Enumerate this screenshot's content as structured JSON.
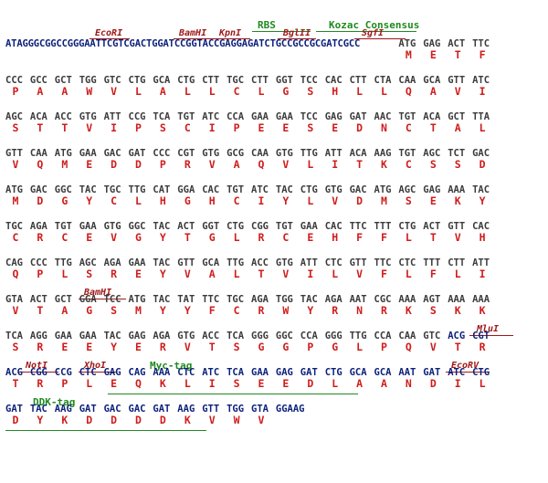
{
  "sequence_prefix": "ATAGGGCGGCCGGGAATTCGTCGACTGGATCCGGTACCGAGGAGATCTGCCGCCGCGATCGCC",
  "features_top": {
    "rbs": "RBS",
    "kozac": "Kozac Consensus",
    "ecori": "EcoRI",
    "bamhi": "BamHI",
    "kpni": "KpnI",
    "bglii": "BglII",
    "sgfi": "SgfI"
  },
  "rows": [
    {
      "codons": [
        "ATG",
        "GAG",
        "ACT",
        "TTC"
      ],
      "aas": [
        "M",
        "E",
        "T",
        "F"
      ]
    },
    {
      "codons": [
        "CCC",
        "GCC",
        "GCT",
        "TGG",
        "GTC",
        "CTG",
        "GCA",
        "CTG",
        "CTT",
        "TGC",
        "CTT",
        "GGT",
        "TCC",
        "CAC",
        "CTT",
        "CTA",
        "CAA",
        "GCA",
        "GTT",
        "ATC"
      ],
      "aas": [
        "P",
        "A",
        "A",
        "W",
        "V",
        "L",
        "A",
        "L",
        "L",
        "C",
        "L",
        "G",
        "S",
        "H",
        "L",
        "L",
        "Q",
        "A",
        "V",
        "I"
      ]
    },
    {
      "codons": [
        "AGC",
        "ACA",
        "ACC",
        "GTG",
        "ATT",
        "CCG",
        "TCA",
        "TGT",
        "ATC",
        "CCA",
        "GAA",
        "GAA",
        "TCC",
        "GAG",
        "GAT",
        "AAC",
        "TGT",
        "ACA",
        "GCT",
        "TTA"
      ],
      "aas": [
        "S",
        "T",
        "T",
        "V",
        "I",
        "P",
        "S",
        "C",
        "I",
        "P",
        "E",
        "E",
        "S",
        "E",
        "D",
        "N",
        "C",
        "T",
        "A",
        "L"
      ]
    },
    {
      "codons": [
        "GTT",
        "CAA",
        "ATG",
        "GAA",
        "GAC",
        "GAT",
        "CCC",
        "CGT",
        "GTG",
        "GCG",
        "CAA",
        "GTG",
        "TTG",
        "ATT",
        "ACA",
        "AAG",
        "TGT",
        "AGC",
        "TCT",
        "GAC"
      ],
      "aas": [
        "V",
        "Q",
        "M",
        "E",
        "D",
        "D",
        "P",
        "R",
        "V",
        "A",
        "Q",
        "V",
        "L",
        "I",
        "T",
        "K",
        "C",
        "S",
        "S",
        "D"
      ]
    },
    {
      "codons": [
        "ATG",
        "GAC",
        "GGC",
        "TAC",
        "TGC",
        "TTG",
        "CAT",
        "GGA",
        "CAC",
        "TGT",
        "ATC",
        "TAC",
        "CTG",
        "GTG",
        "GAC",
        "ATG",
        "AGC",
        "GAG",
        "AAA",
        "TAC"
      ],
      "aas": [
        "M",
        "D",
        "G",
        "Y",
        "C",
        "L",
        "H",
        "G",
        "H",
        "C",
        "I",
        "Y",
        "L",
        "V",
        "D",
        "M",
        "S",
        "E",
        "K",
        "Y"
      ]
    },
    {
      "codons": [
        "TGC",
        "AGA",
        "TGT",
        "GAA",
        "GTG",
        "GGC",
        "TAC",
        "ACT",
        "GGT",
        "CTG",
        "CGG",
        "TGT",
        "GAA",
        "CAC",
        "TTC",
        "TTT",
        "CTG",
        "ACT",
        "GTT",
        "CAC"
      ],
      "aas": [
        "C",
        "R",
        "C",
        "E",
        "V",
        "G",
        "Y",
        "T",
        "G",
        "L",
        "R",
        "C",
        "E",
        "H",
        "F",
        "F",
        "L",
        "T",
        "V",
        "H"
      ]
    },
    {
      "codons": [
        "CAG",
        "CCC",
        "TTG",
        "AGC",
        "AGA",
        "GAA",
        "TAC",
        "GTT",
        "GCA",
        "TTG",
        "ACC",
        "GTG",
        "ATT",
        "CTC",
        "GTT",
        "TTC",
        "CTC",
        "TTT",
        "CTT",
        "ATT"
      ],
      "aas": [
        "Q",
        "P",
        "L",
        "S",
        "R",
        "E",
        "Y",
        "V",
        "A",
        "L",
        "T",
        "V",
        "I",
        "L",
        "V",
        "F",
        "L",
        "F",
        "L",
        "I"
      ]
    },
    {
      "codons": [
        "GTA",
        "ACT",
        "GCT",
        "GGA",
        "TCC",
        "ATG",
        "TAC",
        "TAT",
        "TTC",
        "TGC",
        "AGA",
        "TGG",
        "TAC",
        "AGA",
        "AAT",
        "CGC",
        "AAA",
        "AGT",
        "AAA",
        "AAA"
      ],
      "aas": [
        "V",
        "T",
        "A",
        "G",
        "S",
        "M",
        "Y",
        "Y",
        "F",
        "C",
        "R",
        "W",
        "Y",
        "R",
        "N",
        "R",
        "K",
        "S",
        "K",
        "K"
      ]
    },
    {
      "codons": [
        "TCA",
        "AGG",
        "GAA",
        "GAA",
        "TAC",
        "GAG",
        "AGA",
        "GTG",
        "ACC",
        "TCA",
        "GGG",
        "GGC",
        "CCA",
        "GGG",
        "TTG",
        "CCA",
        "CAA",
        "GTC",
        "ACG",
        "CGT"
      ],
      "aas": [
        "S",
        "R",
        "E",
        "E",
        "Y",
        "E",
        "R",
        "V",
        "T",
        "S",
        "G",
        "G",
        "P",
        "G",
        "L",
        "P",
        "Q",
        "V",
        "T",
        "R"
      ]
    },
    {
      "codons": [
        "ACG",
        "CGG",
        "CCG",
        "CTC",
        "GAG",
        "CAG",
        "AAA",
        "CTC",
        "ATC",
        "TCA",
        "GAA",
        "GAG",
        "GAT",
        "CTG",
        "GCA",
        "GCA",
        "AAT",
        "GAT",
        "ATC",
        "CTG"
      ],
      "aas": [
        "T",
        "R",
        "P",
        "L",
        "E",
        "Q",
        "K",
        "L",
        "I",
        "S",
        "E",
        "E",
        "D",
        "L",
        "A",
        "A",
        "N",
        "D",
        "I",
        "L"
      ]
    },
    {
      "codons": [
        "GAT",
        "TAC",
        "AAG",
        "GAT",
        "GAC",
        "GAC",
        "GAT",
        "AAG",
        "GTT",
        "TGG",
        "GTA",
        "GGAAG"
      ],
      "aas": [
        "D",
        "Y",
        "K",
        "D",
        "D",
        "D",
        "D",
        "K",
        "V",
        "W",
        "V",
        ""
      ]
    }
  ],
  "labels": {
    "bamhi_row8": "BamHI",
    "mlui": "MluI",
    "noti": "NotI",
    "xhoi": "XhoI",
    "myc_tag": "Myc-tag",
    "ecorv": "EcoRV",
    "ddk_tag": "DDK-tag"
  },
  "colors": {
    "codon_gray": "#3b3b3b",
    "codon_blue": "#0a1f7a",
    "aa_red": "#d01c1c",
    "site_label": "#a01818",
    "tag_green": "#1f8a1f"
  }
}
